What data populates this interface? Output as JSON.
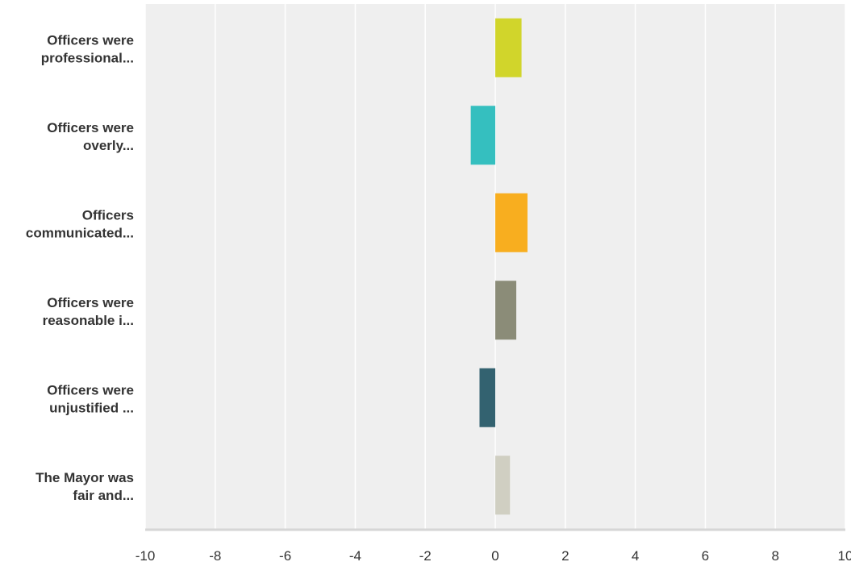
{
  "chart_data": {
    "type": "bar",
    "orientation": "horizontal",
    "categories": [
      [
        "Officers were",
        "professional..."
      ],
      [
        "Officers were",
        "overly..."
      ],
      [
        "Officers",
        "communicated..."
      ],
      [
        "Officers were",
        "reasonable i..."
      ],
      [
        "Officers were",
        "unjustified ..."
      ],
      [
        "The Mayor was",
        "fair and..."
      ]
    ],
    "values": [
      0.75,
      -0.7,
      0.92,
      0.6,
      -0.45,
      0.42
    ],
    "colors": [
      "#d1d52b",
      "#35bfbf",
      "#f8ae1f",
      "#8b8c78",
      "#336270",
      "#d0cfc2"
    ],
    "xlim": [
      -10,
      10
    ],
    "xticks": [
      "-10",
      "-8",
      "-6",
      "-4",
      "-2",
      "0",
      "2",
      "4",
      "6",
      "8",
      "10"
    ],
    "grid": true,
    "plot_background": "#efefef",
    "grid_color": "#ffffff",
    "axis_color": "#d6d6d6"
  }
}
